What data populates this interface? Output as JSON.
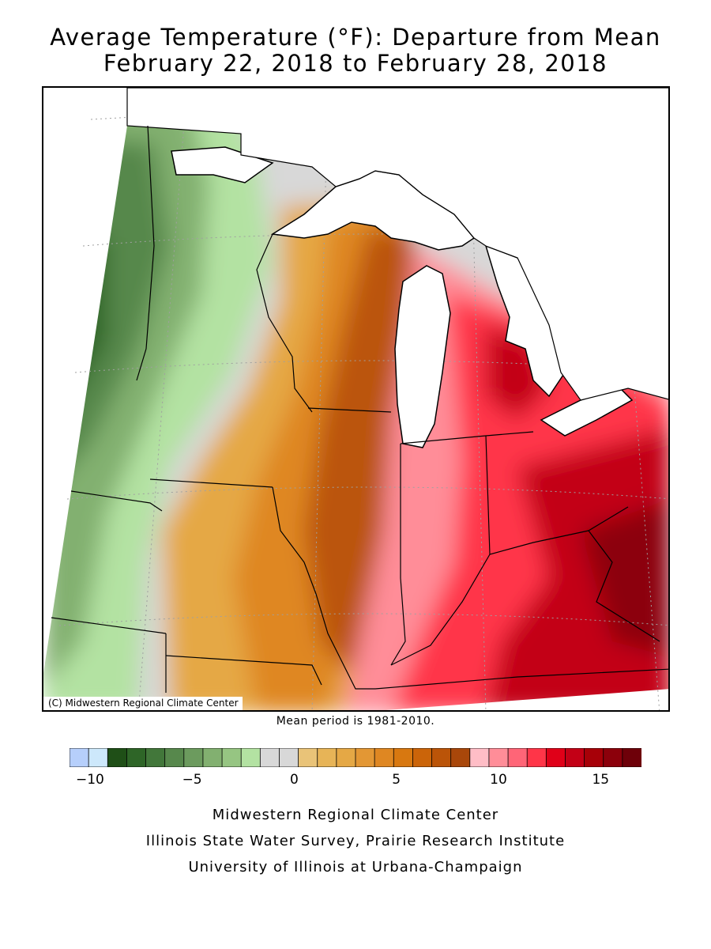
{
  "title": {
    "line1": "Average Temperature (°F): Departure from Mean",
    "line2": "February 22, 2018 to February 28, 2018"
  },
  "map": {
    "copyright": "(C) Midwestern Regional Climate Center",
    "mean_note": "Mean period is 1981-2010.",
    "water_color": "#ffffff",
    "boundary_color": "#000000",
    "grid_color": "#a0a0a0"
  },
  "legend": {
    "units": "°F departure from mean",
    "min": -11,
    "max": 17,
    "colors": [
      "#b6cffb",
      "#cde8fb",
      "#1f4f17",
      "#2e6527",
      "#42773a",
      "#57884c",
      "#6c9b5e",
      "#82b070",
      "#96c582",
      "#b3e2a2",
      "#d8d8d8",
      "#d8d8d8",
      "#e9c378",
      "#e7b457",
      "#e5a845",
      "#e39734",
      "#df8722",
      "#d87810",
      "#cb6409",
      "#bb5408",
      "#a9470a",
      "#ffbdc6",
      "#ff8d98",
      "#ff6577",
      "#ff3548",
      "#e00018",
      "#c30016",
      "#a70008",
      "#8c000b",
      "#6e0009"
    ],
    "ticks": [
      {
        "value": -10,
        "label": "−10"
      },
      {
        "value": -5,
        "label": "−5"
      },
      {
        "value": 0,
        "label": "0"
      },
      {
        "value": 5,
        "label": "5"
      },
      {
        "value": 10,
        "label": "10"
      },
      {
        "value": 15,
        "label": "15"
      }
    ]
  },
  "credits": {
    "line1": "Midwestern Regional Climate Center",
    "line2": "Illinois State Water Survey, Prairie Research Institute",
    "line3": "University of Illinois at Urbana-Champaign"
  }
}
